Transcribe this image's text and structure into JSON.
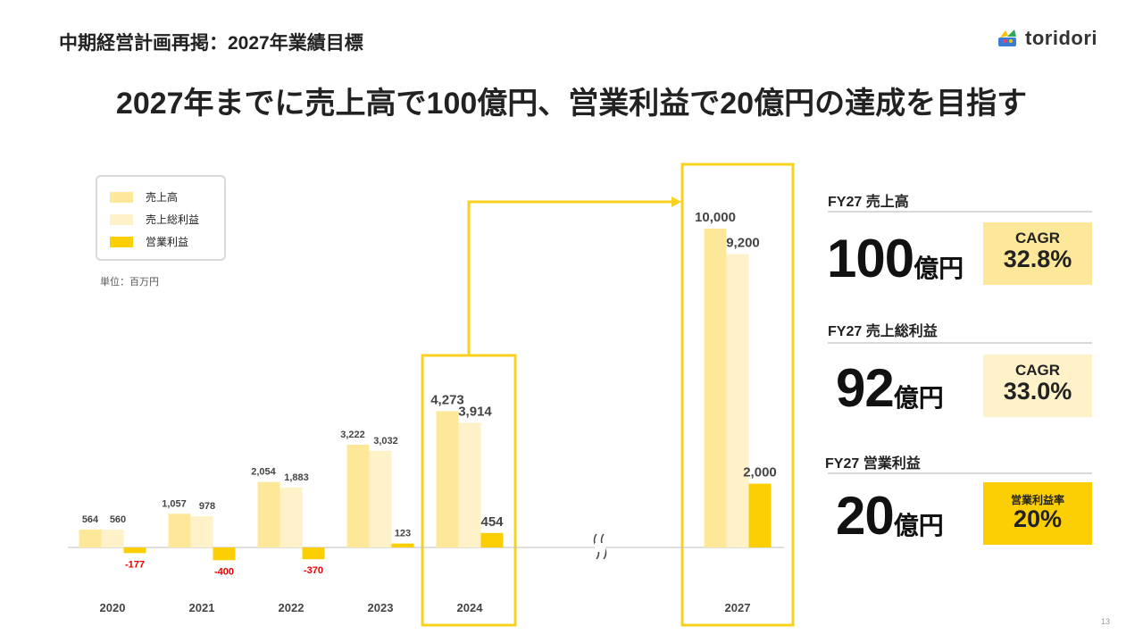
{
  "section_title": "中期経営計画再掲：2027年業績目標",
  "brand": {
    "logo_text": "toridori"
  },
  "headline": "2027年までに売上高で100億円、営業利益で20億円の達成を目指す",
  "unit_note": "単位：百万円",
  "page_number": "13",
  "colors": {
    "revenue": "#fde89a",
    "gross_profit": "#fff2c8",
    "operating_profit": "#fccf05",
    "highlight_frame": "#f9d11e",
    "negative_label": "#e60000",
    "cagr_box_1": "#fde89a",
    "cagr_box_2": "#fff2c8",
    "margin_box": "#fccf05"
  },
  "chart_data": {
    "type": "bar",
    "unit": "単位：百万円",
    "categories": [
      "2020",
      "2021",
      "2022",
      "2023",
      "2024",
      "2027"
    ],
    "series": [
      {
        "name": "売上高",
        "values": [
          564,
          1057,
          2054,
          3222,
          4273,
          10000
        ],
        "labels": [
          "564",
          "1,057",
          "2,054",
          "3,222",
          "4,273",
          "10,000"
        ]
      },
      {
        "name": "売上総利益",
        "values": [
          560,
          978,
          1883,
          3032,
          3914,
          9200
        ],
        "labels": [
          "560",
          "978",
          "1,883",
          "3,032",
          "3,914",
          "9,200"
        ]
      },
      {
        "name": "営業利益",
        "values": [
          -177,
          -400,
          -370,
          123,
          454,
          2000
        ],
        "labels": [
          "-177",
          "-400",
          "-370",
          "123",
          "454",
          "2,000"
        ]
      }
    ],
    "axis_break_between": [
      "2024",
      "2027"
    ],
    "highlighted_categories": [
      "2024",
      "2027"
    ],
    "legend_position": "top-left",
    "grid": false
  },
  "kpis": [
    {
      "label": "FY27 売上高",
      "value": "100",
      "unit": "億円",
      "badge_label": "CAGR",
      "badge_value": "32.8%"
    },
    {
      "label": "FY27 売上総利益",
      "value": "92",
      "unit": "億円",
      "badge_label": "CAGR",
      "badge_value": "33.0%"
    },
    {
      "label": "FY27 営業利益",
      "value": "20",
      "unit": "億円",
      "badge_label": "営業利益率",
      "badge_value": "20%"
    }
  ]
}
